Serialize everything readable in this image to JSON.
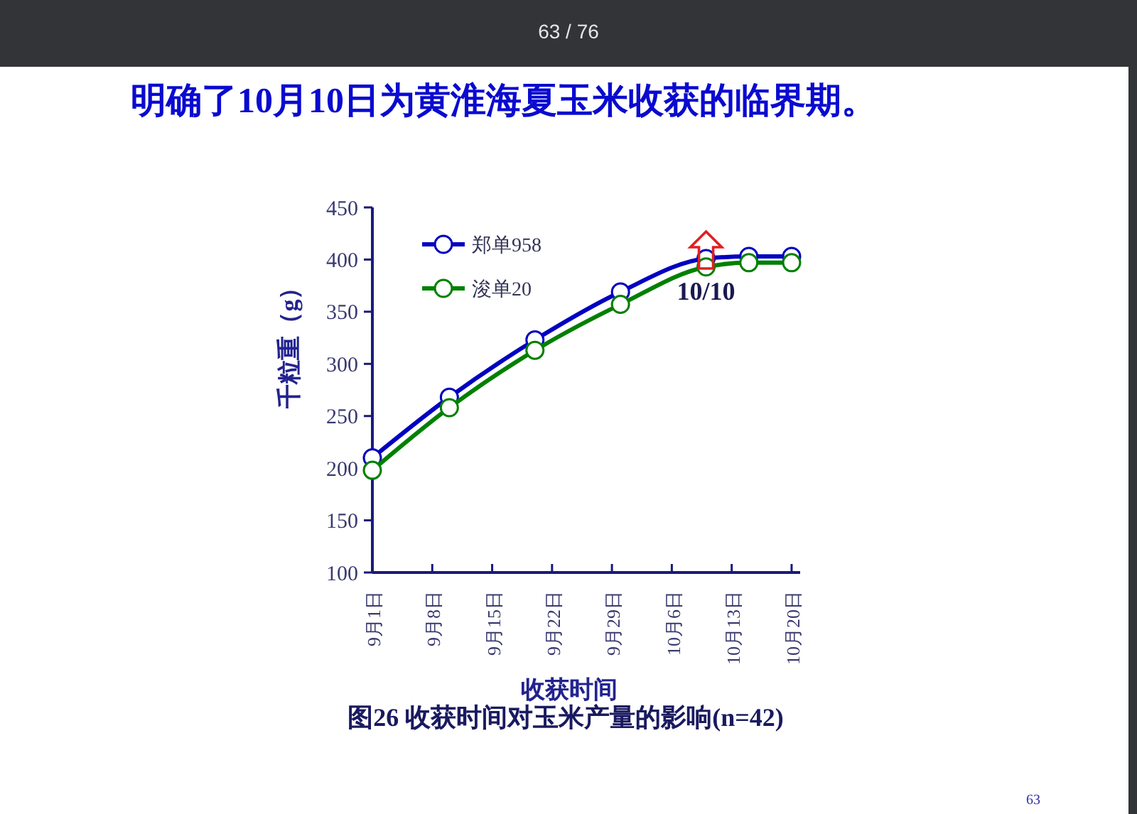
{
  "chart_data": {
    "type": "line",
    "title": "明确了10月10日为黄淮海夏玉米收获的临界期。",
    "xlabel": "收获时间",
    "ylabel": "千粒重（g）",
    "x": [
      "--09-01",
      "--09-10",
      "--09-20",
      "--09-30",
      "--10-10",
      "--10-15",
      "--10-20"
    ],
    "series": [
      {
        "name": "郑单958",
        "color": "#0000c0",
        "values": [
          210,
          268,
          323,
          369,
          401,
          403,
          403
        ]
      },
      {
        "name": "浚单20",
        "color": "#008000",
        "values": [
          198,
          258,
          313,
          357,
          393,
          397,
          397
        ]
      }
    ],
    "xlim": [
      "--09-01",
      "--10-21"
    ],
    "xticks": [
      {
        "value": "--09-01",
        "label": "9月1日"
      },
      {
        "value": "--09-08",
        "label": "9月8日"
      },
      {
        "value": "--09-15",
        "label": "9月15日"
      },
      {
        "value": "--09-22",
        "label": "9月22日"
      },
      {
        "value": "--09-29",
        "label": "9月29日"
      },
      {
        "value": "--10-06",
        "label": "10月6日"
      },
      {
        "value": "--10-13",
        "label": "10月13日"
      },
      {
        "value": "--10-20",
        "label": "10月20日"
      }
    ],
    "ylim": [
      100,
      450
    ],
    "yticks": [
      100,
      150,
      200,
      250,
      300,
      350,
      400,
      450
    ],
    "legend": "top left",
    "marker": "circle",
    "line_style": "solid",
    "annotations": [
      "63 / 76",
      {
        "text": "10/10",
        "x": "--10-10",
        "y": 401
      },
      "图26 收获时间对玉米产量的影响(n=42)",
      "63"
    ]
  }
}
